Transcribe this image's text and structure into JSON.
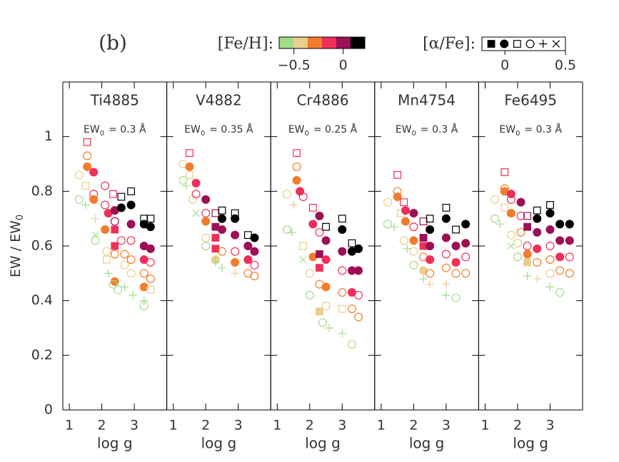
{
  "panel_label": "(b)",
  "ylabel": [
    "EW / EW",
    "0"
  ],
  "feh_legend": {
    "label": "[Fe/H]:",
    "colors": [
      "#a5da8b",
      "#e9cf8c",
      "#f27c2b",
      "#ef2f5a",
      "#9c1056",
      "#000000"
    ],
    "lim": [
      -0.65,
      0.22
    ],
    "ticks": [
      {
        "value": -0.5,
        "label": "−0.5"
      },
      0
    ]
  },
  "alpha_legend": {
    "label": "[α/Fe]:",
    "markers": [
      "square",
      "circle",
      "open-square",
      "open-circle",
      "plus",
      "cross"
    ],
    "lim": [
      -0.19,
      0.5
    ],
    "ticks": [
      0,
      0.5
    ]
  },
  "chart_data": [
    {
      "type": "scatter",
      "title": "Ti4885",
      "annotation": [
        "EW",
        "0",
        "= 0.3 Å"
      ],
      "xlabel": "log g",
      "xlim": [
        0.8,
        4.0
      ],
      "ylim": [
        0,
        1.2
      ],
      "xticks": [
        1,
        2,
        3
      ],
      "yticks": [
        0,
        0.2,
        0.4,
        0.6,
        0.8,
        1
      ],
      "x": [
        1.3,
        1.3,
        1.5,
        1.5,
        1.55,
        1.55,
        1.55,
        1.75,
        1.75,
        1.75,
        1.8,
        1.8,
        1.8,
        2.1,
        2.1,
        2.1,
        2.2,
        2.15,
        2.15,
        2.2,
        2.35,
        2.4,
        2.4,
        2.4,
        2.4,
        2.4,
        2.4,
        2.35,
        2.5,
        2.6,
        2.6,
        2.6,
        2.7,
        2.7,
        2.7,
        2.9,
        2.9,
        2.9,
        2.9,
        2.9,
        2.9,
        2.95,
        3.3,
        3.3,
        3.3,
        3.3,
        3.3,
        3.3,
        3.3,
        3.3,
        3.5,
        3.5,
        3.5,
        3.5,
        3.5,
        3.5
      ],
      "y": [
        0.86,
        0.77,
        0.75,
        0.82,
        0.98,
        0.93,
        0.89,
        0.87,
        0.79,
        0.77,
        0.7,
        0.62,
        0.64,
        0.82,
        0.75,
        0.66,
        0.72,
        0.58,
        0.55,
        0.5,
        0.79,
        0.73,
        0.69,
        0.66,
        0.6,
        0.57,
        0.47,
        0.46,
        0.44,
        0.78,
        0.74,
        0.62,
        0.57,
        0.53,
        0.45,
        0.8,
        0.75,
        0.68,
        0.62,
        0.55,
        0.5,
        0.42,
        0.7,
        0.68,
        0.6,
        0.55,
        0.5,
        0.45,
        0.4,
        0.38,
        0.7,
        0.67,
        0.59,
        0.54,
        0.48,
        0.44
      ],
      "colors": [
        "#e9cf8c",
        "#a5da8b",
        "#a5da8b",
        "#e9cf8c",
        "#ef2f5a",
        "#f27c2b",
        "#f27c2b",
        "#ef2f5a",
        "#ef2f5a",
        "#f27c2b",
        "#e9cf8c",
        "#a5da8b",
        "#a5da8b",
        "#ef2f5a",
        "#ef2f5a",
        "#f27c2b",
        "#ef2f5a",
        "#e9cf8c",
        "#e9cf8c",
        "#a5da8b",
        "#ef2f5a",
        "#9c1056",
        "#9c1056",
        "#ef2f5a",
        "#ef2f5a",
        "#f27c2b",
        "#f27c2b",
        "#a5da8b",
        "#a5da8b",
        "#000000",
        "#000000",
        "#ef2f5a",
        "#f27c2b",
        "#e9cf8c",
        "#a5da8b",
        "#000000",
        "#000000",
        "#9c1056",
        "#ef2f5a",
        "#f27c2b",
        "#e9cf8c",
        "#a5da8b",
        "#000000",
        "#000000",
        "#9c1056",
        "#ef2f5a",
        "#f27c2b",
        "#f27c2b",
        "#a5da8b",
        "#a5da8b",
        "#000000",
        "#000000",
        "#9c1056",
        "#ef2f5a",
        "#f27c2b",
        "#e9cf8c"
      ],
      "markers": [
        "open-circle",
        "open-circle",
        "plus",
        "open-square",
        "open-square",
        "open-circle",
        "circle",
        "circle",
        "open-circle",
        "circle",
        "plus",
        "open-circle",
        "cross",
        "open-circle",
        "open-circle",
        "circle",
        "circle",
        "open-circle",
        "open-square",
        "plus",
        "open-square",
        "circle",
        "open-circle",
        "square",
        "square",
        "open-circle",
        "circle",
        "open-circle",
        "open-circle",
        "open-square",
        "circle",
        "open-circle",
        "open-circle",
        "open-circle",
        "plus",
        "open-square",
        "circle",
        "circle",
        "open-circle",
        "open-circle",
        "open-circle",
        "plus",
        "open-square",
        "circle",
        "circle",
        "circle",
        "open-circle",
        "circle",
        "plus",
        "open-circle",
        "open-square",
        "circle",
        "circle",
        "open-circle",
        "open-circle",
        "open-square"
      ]
    },
    {
      "type": "scatter",
      "title": "V4882",
      "annotation": [
        "EW",
        "0",
        "= 0.35 Å"
      ],
      "xlabel": "log g",
      "xlim": [
        0.8,
        4.0
      ],
      "ylim": [
        0,
        1.2
      ],
      "xticks": [
        1,
        2,
        3
      ],
      "yticks": [
        0,
        0.2,
        0.4,
        0.6,
        0.8,
        1
      ],
      "x": [
        1.3,
        1.3,
        1.4,
        1.5,
        1.5,
        1.5,
        1.6,
        1.7,
        1.7,
        1.7,
        2.0,
        2.0,
        2.0,
        2.0,
        2.0,
        2.3,
        2.3,
        2.3,
        2.3,
        2.3,
        2.3,
        2.5,
        2.5,
        2.5,
        2.5,
        2.5,
        2.9,
        2.9,
        2.9,
        2.9,
        2.9,
        2.9,
        3.3,
        3.3,
        3.3,
        3.3,
        3.5,
        3.5,
        3.5,
        3.5
      ],
      "y": [
        0.9,
        0.84,
        0.82,
        0.94,
        0.89,
        0.86,
        0.77,
        0.83,
        0.79,
        0.72,
        0.77,
        0.72,
        0.69,
        0.63,
        0.6,
        0.72,
        0.67,
        0.63,
        0.59,
        0.55,
        0.54,
        0.73,
        0.7,
        0.66,
        0.58,
        0.52,
        0.72,
        0.7,
        0.64,
        0.58,
        0.54,
        0.5,
        0.64,
        0.6,
        0.55,
        0.5,
        0.63,
        0.58,
        0.53,
        0.49
      ],
      "colors": [
        "#e9cf8c",
        "#a5da8b",
        "#a5da8b",
        "#ef2f5a",
        "#f27c2b",
        "#e9cf8c",
        "#e9cf8c",
        "#ef2f5a",
        "#ef2f5a",
        "#a5da8b",
        "#9c1056",
        "#ef2f5a",
        "#f27c2b",
        "#e9cf8c",
        "#a5da8b",
        "#9c1056",
        "#9c1056",
        "#ef2f5a",
        "#ef2f5a",
        "#e9cf8c",
        "#a5da8b",
        "#000000",
        "#000000",
        "#9c1056",
        "#f27c2b",
        "#a5da8b",
        "#000000",
        "#000000",
        "#9c1056",
        "#ef2f5a",
        "#f27c2b",
        "#e9cf8c",
        "#000000",
        "#9c1056",
        "#ef2f5a",
        "#f27c2b",
        "#000000",
        "#9c1056",
        "#ef2f5a",
        "#f27c2b"
      ],
      "markers": [
        "open-circle",
        "open-circle",
        "plus",
        "open-square",
        "circle",
        "open-square",
        "open-circle",
        "circle",
        "open-circle",
        "cross",
        "circle",
        "open-circle",
        "circle",
        "open-circle",
        "open-circle",
        "open-square",
        "square",
        "square",
        "square",
        "circle",
        "plus",
        "open-square",
        "circle",
        "circle",
        "open-circle",
        "plus",
        "open-square",
        "circle",
        "circle",
        "open-circle",
        "circle",
        "plus",
        "open-square",
        "circle",
        "circle",
        "open-circle",
        "circle",
        "circle",
        "open-circle",
        "open-circle"
      ]
    },
    {
      "type": "scatter",
      "title": "Cr4886",
      "annotation": [
        "EW",
        "0",
        "= 0.25 Å"
      ],
      "xlabel": "log g",
      "xlim": [
        0.8,
        4.0
      ],
      "ylim": [
        0,
        1.2
      ],
      "xticks": [
        1,
        2,
        3
      ],
      "yticks": [
        0,
        0.2,
        0.4,
        0.6,
        0.8,
        1
      ],
      "x": [
        1.3,
        1.3,
        1.45,
        1.6,
        1.6,
        1.6,
        1.5,
        1.7,
        1.8,
        1.8,
        1.8,
        2.1,
        2.1,
        2.1,
        2.0,
        2.0,
        2.3,
        2.3,
        2.3,
        2.3,
        2.3,
        2.3,
        2.4,
        2.5,
        2.5,
        2.5,
        2.5,
        2.5,
        2.6,
        3.0,
        3.0,
        3.0,
        3.0,
        3.0,
        3.0,
        3.0,
        3.3,
        3.3,
        3.3,
        3.3,
        3.3,
        3.3,
        3.5,
        3.5,
        3.5,
        3.5
      ],
      "y": [
        0.79,
        0.66,
        0.65,
        0.94,
        0.89,
        0.84,
        0.75,
        0.8,
        0.78,
        0.6,
        0.55,
        0.74,
        0.68,
        0.56,
        0.5,
        0.42,
        0.71,
        0.65,
        0.57,
        0.52,
        0.46,
        0.36,
        0.32,
        0.67,
        0.62,
        0.55,
        0.45,
        0.38,
        0.3,
        0.7,
        0.66,
        0.58,
        0.51,
        0.43,
        0.37,
        0.28,
        0.61,
        0.58,
        0.51,
        0.43,
        0.37,
        0.24,
        0.59,
        0.51,
        0.42,
        0.34
      ],
      "colors": [
        "#e9cf8c",
        "#a5da8b",
        "#a5da8b",
        "#ef2f5a",
        "#f27c2b",
        "#f27c2b",
        "#e9cf8c",
        "#ef2f5a",
        "#ef2f5a",
        "#e9cf8c",
        "#a5da8b",
        "#ef2f5a",
        "#ef2f5a",
        "#f27c2b",
        "#e9cf8c",
        "#a5da8b",
        "#9c1056",
        "#ef2f5a",
        "#9c1056",
        "#ef2f5a",
        "#f27c2b",
        "#e9cf8c",
        "#a5da8b",
        "#000000",
        "#9c1056",
        "#ef2f5a",
        "#f27c2b",
        "#e9cf8c",
        "#a5da8b",
        "#000000",
        "#000000",
        "#9c1056",
        "#ef2f5a",
        "#f27c2b",
        "#e9cf8c",
        "#a5da8b",
        "#000000",
        "#000000",
        "#9c1056",
        "#ef2f5a",
        "#f27c2b",
        "#a5da8b",
        "#000000",
        "#9c1056",
        "#ef2f5a",
        "#f27c2b"
      ],
      "markers": [
        "open-circle",
        "open-circle",
        "plus",
        "open-square",
        "open-circle",
        "circle",
        "plus",
        "circle",
        "open-circle",
        "open-square",
        "cross",
        "open-square",
        "circle",
        "circle",
        "open-circle",
        "open-circle",
        "circle",
        "open-circle",
        "square",
        "square",
        "open-circle",
        "square",
        "open-circle",
        "open-square",
        "circle",
        "circle",
        "circle",
        "open-circle",
        "plus",
        "open-square",
        "circle",
        "circle",
        "open-circle",
        "open-circle",
        "open-square",
        "plus",
        "open-square",
        "circle",
        "circle",
        "circle",
        "open-circle",
        "open-circle",
        "circle",
        "circle",
        "open-circle",
        "open-circle"
      ]
    },
    {
      "type": "scatter",
      "title": "Mn4754",
      "annotation": [
        "EW",
        "0",
        "= 0.3 Å"
      ],
      "xlabel": "log g",
      "xlim": [
        0.8,
        4.0
      ],
      "ylim": [
        0,
        1.2
      ],
      "xticks": [
        1,
        2,
        3
      ],
      "yticks": [
        0,
        0.2,
        0.4,
        0.6,
        0.8,
        1
      ],
      "x": [
        1.2,
        1.2,
        1.4,
        1.5,
        1.5,
        1.5,
        1.6,
        1.7,
        1.75,
        1.75,
        1.7,
        1.8,
        2.0,
        2.0,
        2.0,
        2.0,
        2.0,
        2.3,
        2.3,
        2.3,
        2.3,
        2.3,
        2.3,
        2.5,
        2.5,
        2.5,
        2.5,
        2.5,
        2.5,
        3.0,
        3.0,
        3.0,
        3.0,
        3.0,
        3.0,
        3.0,
        3.3,
        3.3,
        3.3,
        3.3,
        3.3,
        3.6,
        3.6,
        3.6,
        3.6
      ],
      "y": [
        0.76,
        0.68,
        0.67,
        0.86,
        0.8,
        0.78,
        0.72,
        0.76,
        0.73,
        0.69,
        0.62,
        0.59,
        0.72,
        0.67,
        0.62,
        0.58,
        0.53,
        0.69,
        0.63,
        0.6,
        0.56,
        0.51,
        0.48,
        0.7,
        0.66,
        0.6,
        0.55,
        0.5,
        0.46,
        0.74,
        0.7,
        0.63,
        0.57,
        0.52,
        0.46,
        0.42,
        0.66,
        0.6,
        0.54,
        0.5,
        0.41,
        0.68,
        0.61,
        0.56,
        0.5
      ],
      "colors": [
        "#e9cf8c",
        "#a5da8b",
        "#a5da8b",
        "#ef2f5a",
        "#f27c2b",
        "#f27c2b",
        "#e9cf8c",
        "#ef2f5a",
        "#ef2f5a",
        "#f27c2b",
        "#e9cf8c",
        "#a5da8b",
        "#9c1056",
        "#ef2f5a",
        "#f27c2b",
        "#e9cf8c",
        "#a5da8b",
        "#9c1056",
        "#9c1056",
        "#ef2f5a",
        "#f27c2b",
        "#e9cf8c",
        "#a5da8b",
        "#000000",
        "#000000",
        "#9c1056",
        "#ef2f5a",
        "#f27c2b",
        "#e9cf8c",
        "#000000",
        "#000000",
        "#9c1056",
        "#ef2f5a",
        "#f27c2b",
        "#e9cf8c",
        "#a5da8b",
        "#000000",
        "#9c1056",
        "#ef2f5a",
        "#f27c2b",
        "#a5da8b",
        "#000000",
        "#9c1056",
        "#ef2f5a",
        "#f27c2b"
      ],
      "markers": [
        "open-circle",
        "open-circle",
        "plus",
        "open-square",
        "open-circle",
        "circle",
        "open-square",
        "open-square",
        "circle",
        "circle",
        "open-circle",
        "plus",
        "circle",
        "open-circle",
        "circle",
        "open-circle",
        "open-circle",
        "open-square",
        "square",
        "square",
        "open-circle",
        "circle",
        "plus",
        "open-square",
        "circle",
        "circle",
        "circle",
        "open-circle",
        "plus",
        "open-square",
        "circle",
        "circle",
        "open-circle",
        "open-circle",
        "plus",
        "plus",
        "open-square",
        "circle",
        "circle",
        "open-circle",
        "open-circle",
        "circle",
        "circle",
        "open-circle",
        "open-circle"
      ]
    },
    {
      "type": "scatter",
      "title": "Fe6495",
      "annotation": [
        "EW",
        "0",
        "= 0.3 Å"
      ],
      "xlabel": "log g",
      "xlim": [
        0.8,
        4.0
      ],
      "ylim": [
        0,
        1.2
      ],
      "xticks": [
        1,
        2,
        3
      ],
      "yticks": [
        0,
        0.2,
        0.4,
        0.6,
        0.8,
        1
      ],
      "x": [
        1.3,
        1.3,
        1.45,
        1.6,
        1.6,
        1.6,
        1.6,
        1.8,
        1.8,
        1.8,
        1.8,
        1.8,
        2.1,
        2.1,
        2.1,
        2.0,
        2.0,
        2.3,
        2.3,
        2.3,
        2.3,
        2.3,
        2.3,
        2.6,
        2.6,
        2.6,
        2.6,
        2.6,
        2.6,
        3.0,
        3.0,
        3.0,
        3.0,
        3.0,
        3.0,
        3.0,
        3.3,
        3.3,
        3.3,
        3.3,
        3.3,
        3.6,
        3.6,
        3.6,
        3.6
      ],
      "y": [
        0.77,
        0.7,
        0.68,
        0.87,
        0.81,
        0.8,
        0.74,
        0.79,
        0.77,
        0.72,
        0.64,
        0.6,
        0.76,
        0.71,
        0.65,
        0.61,
        0.56,
        0.71,
        0.67,
        0.6,
        0.57,
        0.54,
        0.49,
        0.73,
        0.7,
        0.65,
        0.59,
        0.54,
        0.48,
        0.75,
        0.72,
        0.66,
        0.6,
        0.55,
        0.5,
        0.45,
        0.68,
        0.62,
        0.56,
        0.51,
        0.43,
        0.68,
        0.62,
        0.56,
        0.5
      ],
      "colors": [
        "#e9cf8c",
        "#a5da8b",
        "#a5da8b",
        "#ef2f5a",
        "#f27c2b",
        "#f27c2b",
        "#e9cf8c",
        "#ef2f5a",
        "#ef2f5a",
        "#f27c2b",
        "#e9cf8c",
        "#a5da8b",
        "#9c1056",
        "#ef2f5a",
        "#f27c2b",
        "#e9cf8c",
        "#a5da8b",
        "#9c1056",
        "#9c1056",
        "#ef2f5a",
        "#f27c2b",
        "#e9cf8c",
        "#a5da8b",
        "#000000",
        "#000000",
        "#9c1056",
        "#ef2f5a",
        "#f27c2b",
        "#e9cf8c",
        "#000000",
        "#000000",
        "#9c1056",
        "#ef2f5a",
        "#f27c2b",
        "#e9cf8c",
        "#a5da8b",
        "#000000",
        "#9c1056",
        "#ef2f5a",
        "#f27c2b",
        "#a5da8b",
        "#000000",
        "#9c1056",
        "#ef2f5a",
        "#f27c2b"
      ],
      "markers": [
        "open-circle",
        "open-circle",
        "plus",
        "open-square",
        "open-circle",
        "circle",
        "open-square",
        "circle",
        "open-circle",
        "circle",
        "open-circle",
        "cross",
        "circle",
        "open-circle",
        "open-circle",
        "open-circle",
        "open-circle",
        "open-square",
        "square",
        "open-circle",
        "circle",
        "square",
        "plus",
        "open-square",
        "circle",
        "circle",
        "circle",
        "open-circle",
        "plus",
        "open-square",
        "circle",
        "circle",
        "open-circle",
        "open-circle",
        "open-circle",
        "plus",
        "circle",
        "circle",
        "circle",
        "open-circle",
        "open-circle",
        "circle",
        "circle",
        "open-circle",
        "open-circle"
      ]
    }
  ]
}
